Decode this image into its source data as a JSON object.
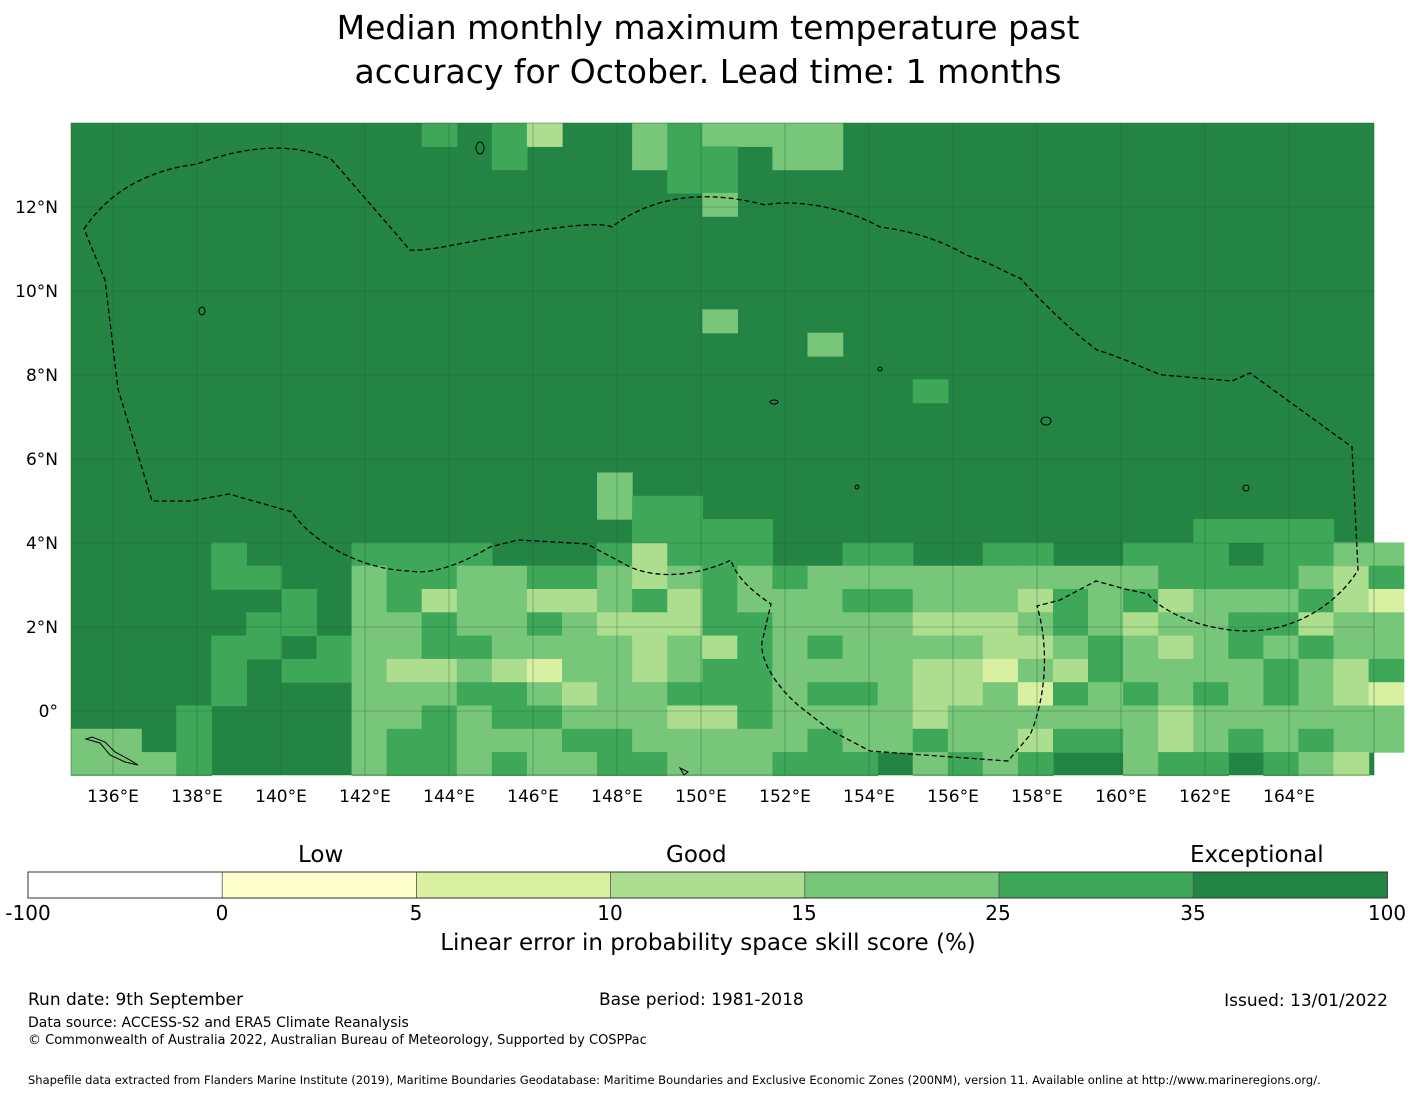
{
  "title": {
    "line1": "Median monthly maximum temperature past",
    "line2": "accuracy for October. Lead time: 1 months"
  },
  "map": {
    "lon_labels": [
      "136°E",
      "138°E",
      "140°E",
      "142°E",
      "144°E",
      "146°E",
      "148°E",
      "150°E",
      "152°E",
      "154°E",
      "156°E",
      "158°E",
      "160°E",
      "162°E",
      "164°E"
    ],
    "lat_labels": [
      "12°N",
      "10°N",
      "8°N",
      "6°N",
      "4°N",
      "2°N",
      "0°"
    ],
    "colors": {
      "exceptional": "#248444",
      "very_good": "#3ea858",
      "good_high": "#78c679",
      "good_low": "#addd8e",
      "low_high": "#d9f0a3",
      "low": "#ffffcc",
      "none": "#ffffff"
    }
  },
  "colorbar": {
    "categories": [
      "Low",
      "Good",
      "Exceptional"
    ],
    "ticks": [
      "-100",
      "0",
      "5",
      "10",
      "15",
      "25",
      "35",
      "100"
    ],
    "colors": [
      "#ffffff",
      "#ffffcc",
      "#d9f0a3",
      "#addd8e",
      "#78c679",
      "#3ea858",
      "#248444"
    ],
    "label": "Linear error in probability space skill score (%)"
  },
  "footer": {
    "run_date": "Run date: 9th September",
    "base_period": "Base period: 1981-2018",
    "issued": "Issued: 13/01/2022",
    "data_source": "Data source: ACCESS-S2 and ERA5 Climate Reanalysis",
    "copyright": "© Commonwealth of Australia 2022, Australian Bureau of Meteorology, Supported by COSPPac",
    "shapefile": "Shapefile data extracted from Flanders Marine Institute (2019), Maritime Boundaries Geodatabase: Maritime Boundaries and Exclusive Economic Zones (200NM), version 11. Available online at http://www.marineregions.org/."
  }
}
